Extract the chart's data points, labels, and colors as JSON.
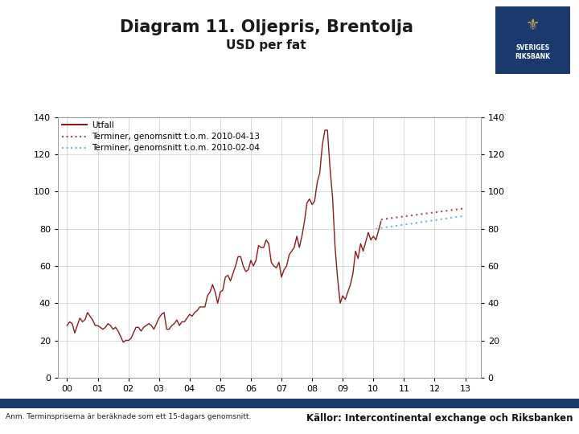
{
  "title": "Diagram 11. Oljepris, Brentolja",
  "subtitle": "USD per fat",
  "title_fontsize": 15,
  "subtitle_fontsize": 11,
  "ylim": [
    0,
    140
  ],
  "yticks": [
    0,
    20,
    40,
    60,
    80,
    100,
    120,
    140
  ],
  "xtick_labels": [
    "00",
    "01",
    "02",
    "03",
    "04",
    "05",
    "06",
    "07",
    "08",
    "09",
    "10",
    "11",
    "12",
    "13"
  ],
  "legend_labels": [
    "Utfall",
    "Terminer, genomsnitt t.o.m. 2010-04-13",
    "Terminer, genomsnitt t.o.m. 2010-02-04"
  ],
  "actual_color": "#8B1A1A",
  "fut1_color": "#9B5050",
  "fut2_color": "#6BB8D4",
  "footer_bar_color": "#1a3a6e",
  "footer_text_left": "Anm. Terminspriserna är beräknade som ett 15-dagars genomsnitt.",
  "footer_text_right": "Källor: Intercontinental exchange och Riksbanken",
  "background_color": "#ffffff",
  "grid_color": "#cccccc",
  "logo_color": "#1a3a6e"
}
